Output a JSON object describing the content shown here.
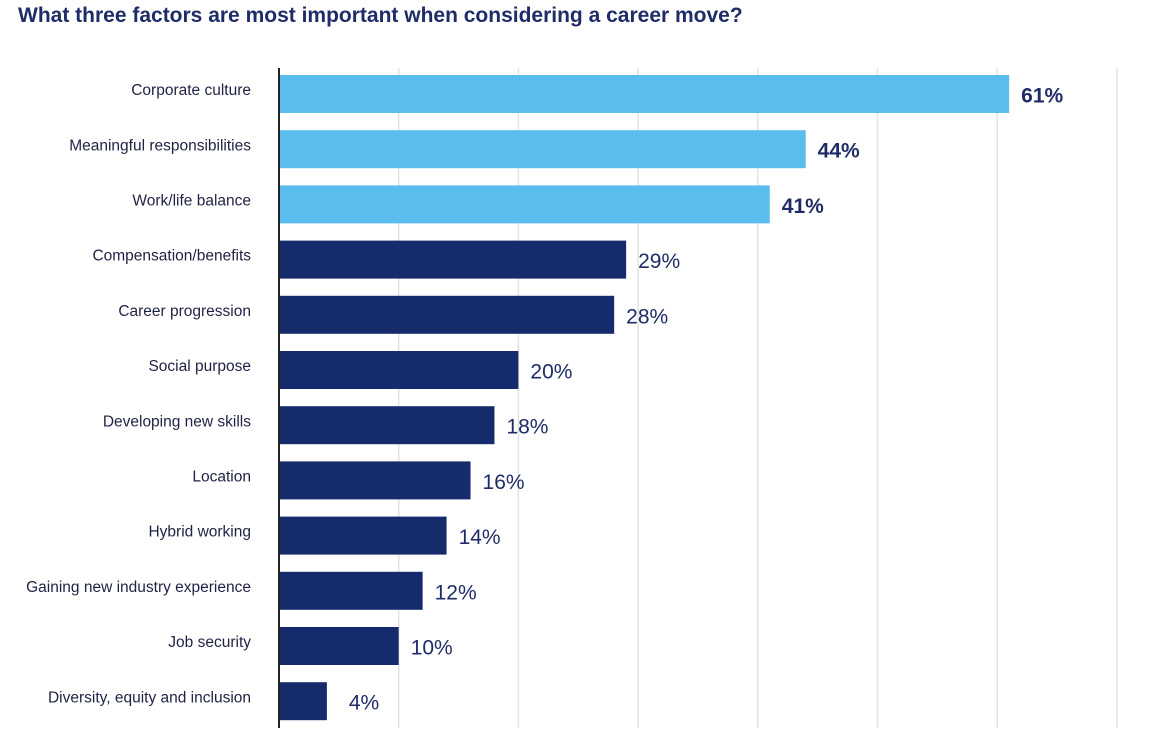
{
  "chart_data": {
    "type": "bar",
    "orientation": "horizontal",
    "title": "What three factors are most important when considering a career move?",
    "categories": [
      "Corporate culture",
      "Meaningful responsibilities",
      "Work/life balance",
      "Compensation/benefits",
      "Career progression",
      "Social purpose",
      "Developing new skills",
      "Location",
      "Hybrid working",
      "Gaining new industry experience",
      "Job security",
      "Diversity, equity and inclusion"
    ],
    "values": [
      61,
      44,
      41,
      29,
      28,
      20,
      18,
      16,
      14,
      12,
      10,
      4
    ],
    "value_labels": [
      "61%",
      "44%",
      "41%",
      "29%",
      "28%",
      "20%",
      "18%",
      "16%",
      "14%",
      "12%",
      "10%",
      "4%"
    ],
    "highlighted": [
      true,
      true,
      true,
      false,
      false,
      false,
      false,
      false,
      false,
      false,
      false,
      false
    ],
    "xlim": [
      0,
      70
    ],
    "grid_step": 10,
    "grid": true,
    "colors": {
      "highlight": "#5bbdee",
      "default": "#162b6b",
      "grid": "#e3e3e3",
      "axis": "#222222",
      "title": "#1f2c67",
      "value_text": "#1f2c67",
      "category_text": "#1f2244"
    }
  }
}
